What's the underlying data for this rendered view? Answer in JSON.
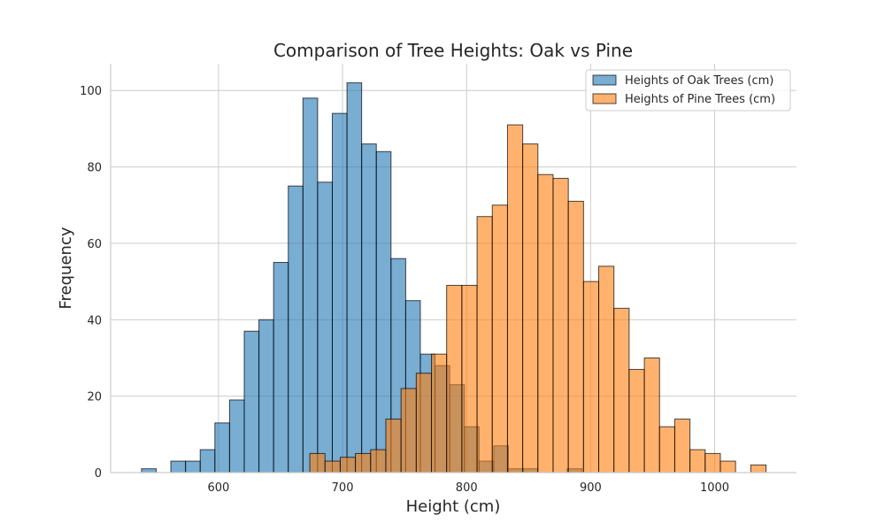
{
  "chart_data": {
    "type": "histogram",
    "title": "Comparison of Tree Heights: Oak vs Pine",
    "xlabel": "Height (cm)",
    "ylabel": "Frequency",
    "xlim": [
      513,
      1066
    ],
    "ylim": [
      0,
      107
    ],
    "xticks": [
      600,
      700,
      800,
      900,
      1000
    ],
    "yticks": [
      0,
      20,
      40,
      60,
      80,
      100
    ],
    "grid": true,
    "legend_placement": "upper-right",
    "series": [
      {
        "name": "Heights of Oak Trees (cm)",
        "color": "#1f77b4",
        "bin_start": 537.9,
        "bin_end": 892.9,
        "counts": [
          1,
          0,
          3,
          3,
          6,
          13,
          19,
          37,
          40,
          55,
          75,
          98,
          76,
          94,
          102,
          86,
          84,
          56,
          45,
          31,
          28,
          23,
          12,
          3,
          7,
          1,
          1,
          0,
          0,
          1
        ]
      },
      {
        "name": "Heights of Pine Trees (cm)",
        "color": "#ff7f0e",
        "bin_start": 673.6,
        "bin_end": 1041.4,
        "counts": [
          5,
          3,
          4,
          5,
          6,
          14,
          22,
          26,
          31,
          49,
          49,
          67,
          70,
          91,
          86,
          78,
          77,
          71,
          50,
          54,
          43,
          27,
          30,
          12,
          14,
          6,
          5,
          3,
          0,
          2
        ]
      }
    ]
  }
}
